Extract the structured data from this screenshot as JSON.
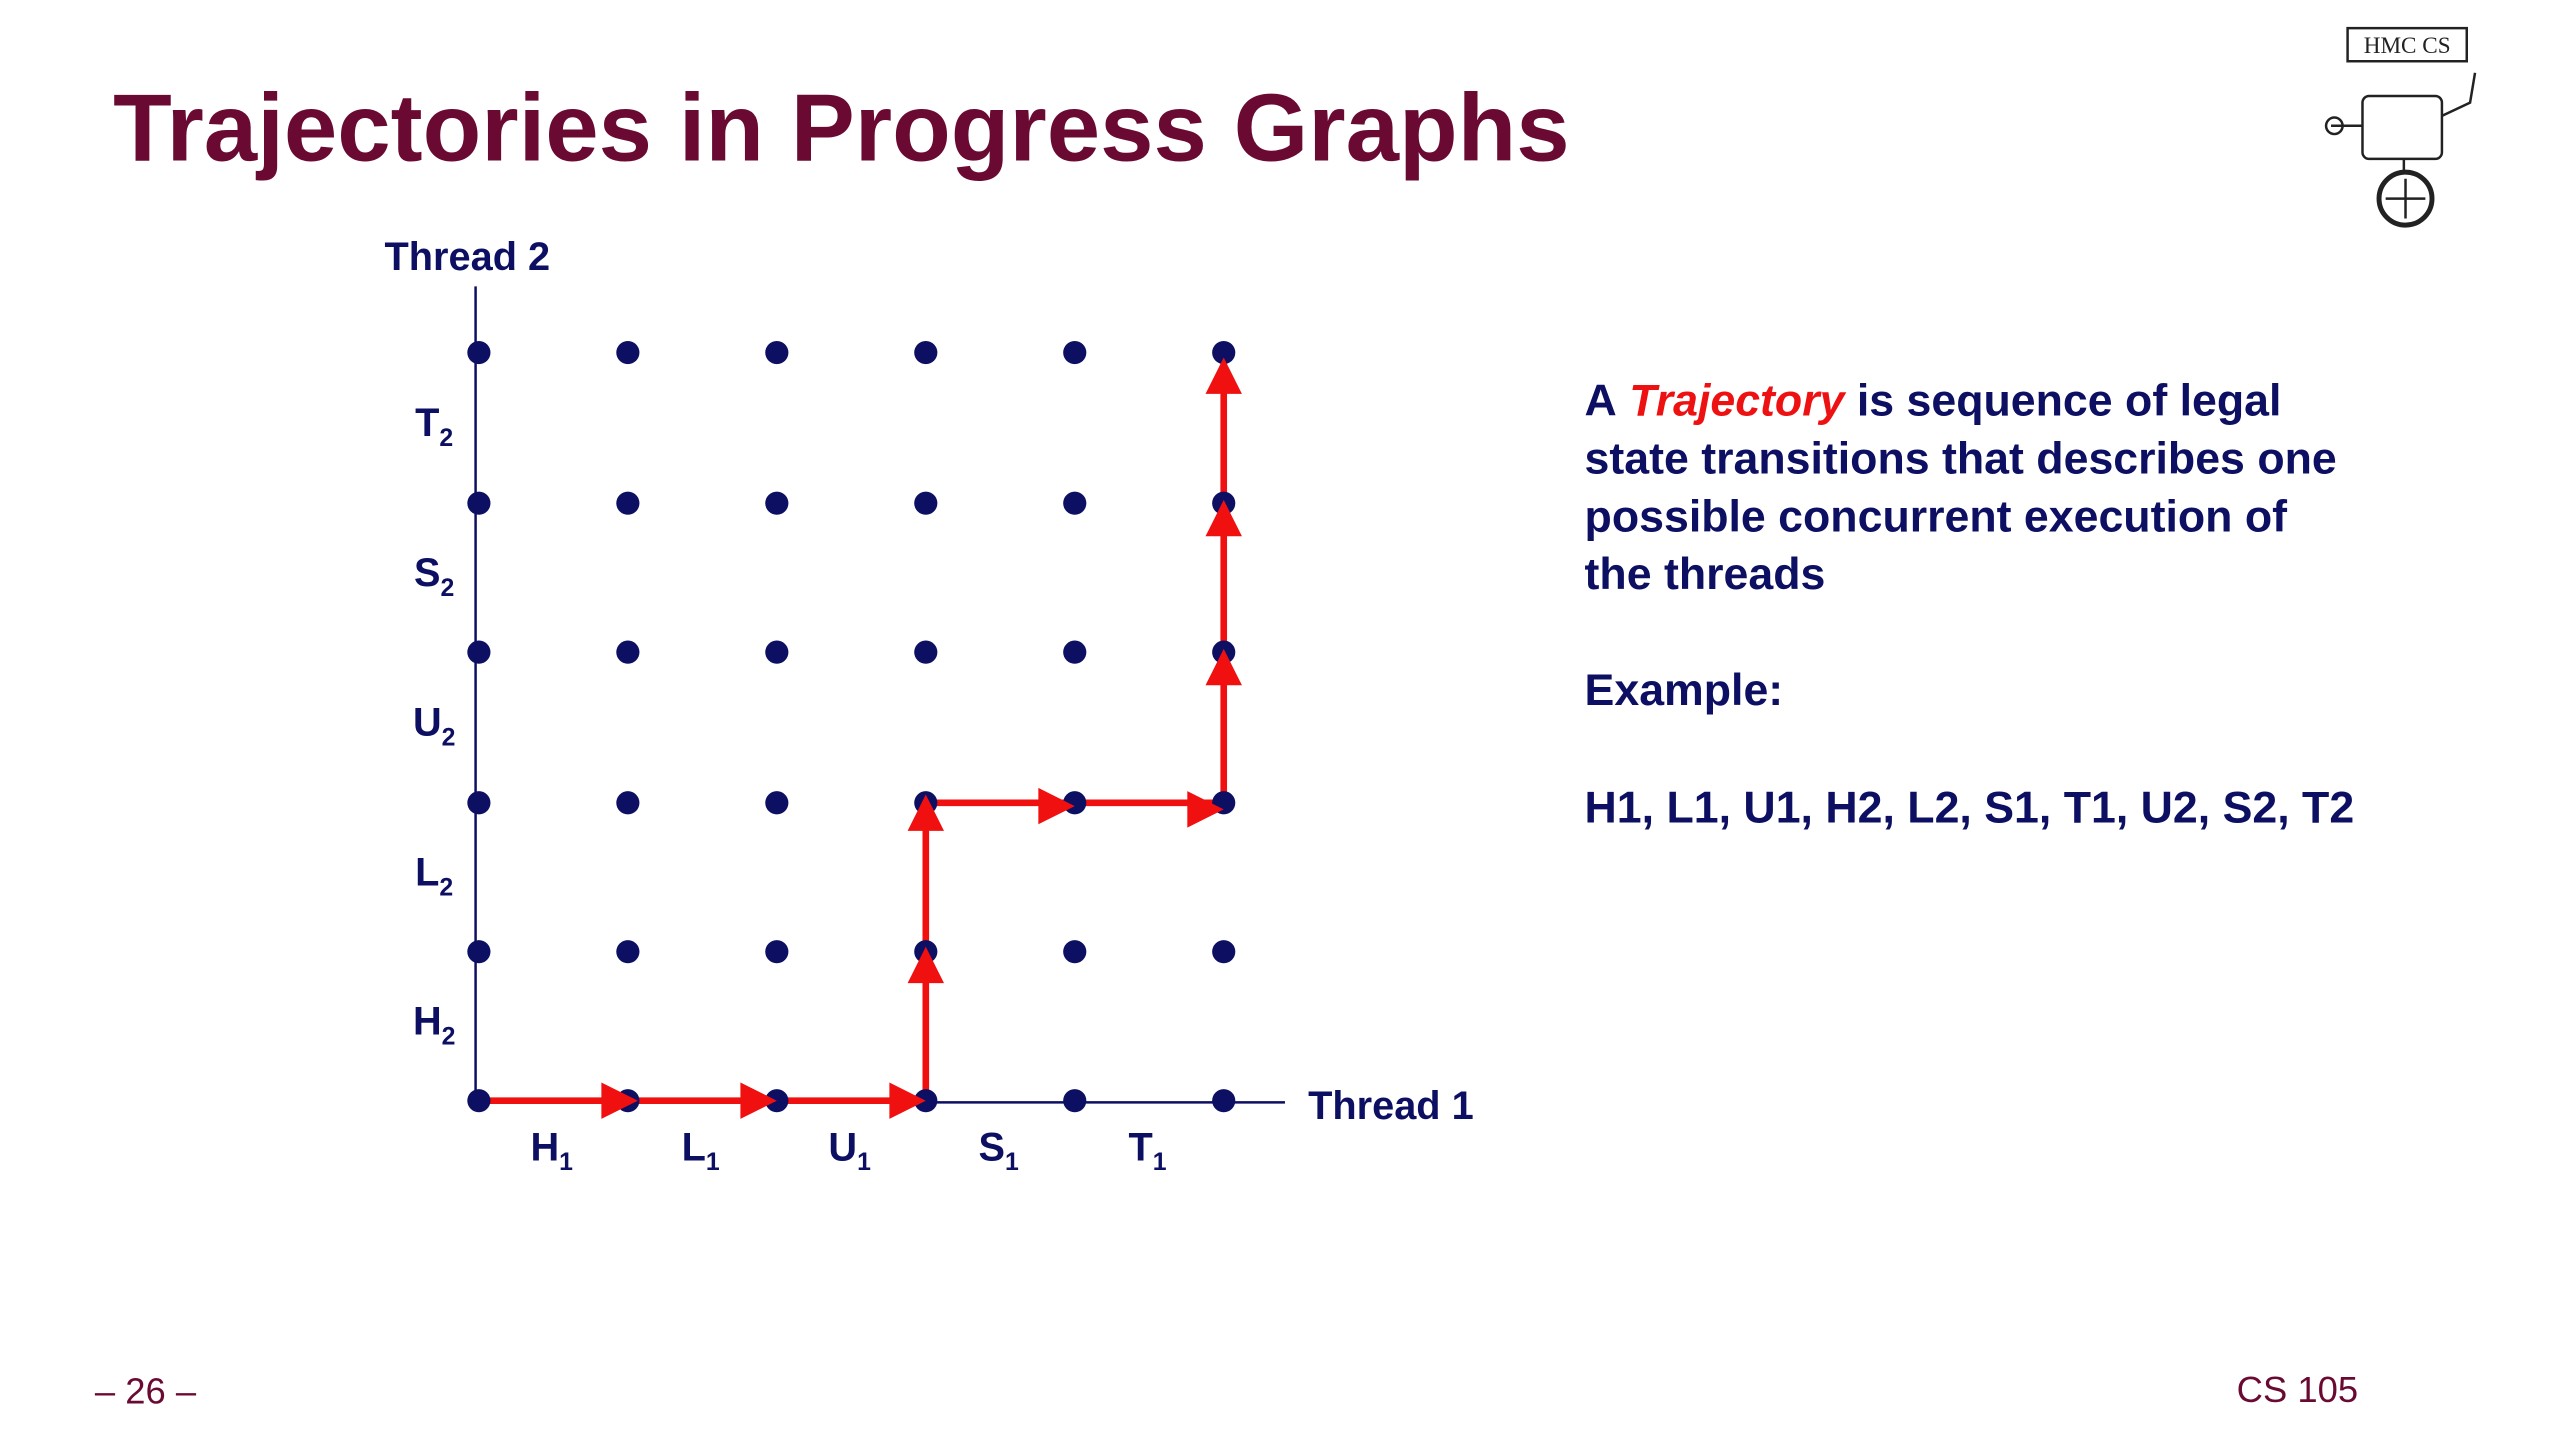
{
  "header": {
    "title": "Trajectories in Progress Graphs",
    "logo_text": "HMC CS"
  },
  "graph": {
    "y_axis_label": "Thread 2",
    "x_axis_label": "Thread 1",
    "x_ticks": [
      {
        "main": "H",
        "sub": "1"
      },
      {
        "main": "L",
        "sub": "1"
      },
      {
        "main": "U",
        "sub": "1"
      },
      {
        "main": "S",
        "sub": "1"
      },
      {
        "main": "T",
        "sub": "1"
      }
    ],
    "y_ticks": [
      {
        "main": "H",
        "sub": "2"
      },
      {
        "main": "L",
        "sub": "2"
      },
      {
        "main": "U",
        "sub": "2"
      },
      {
        "main": "S",
        "sub": "2"
      },
      {
        "main": "T",
        "sub": "2"
      }
    ]
  },
  "text": {
    "line1": {
      "lead": "A",
      "term": "Trajectory",
      "rest": "is sequence of legal"
    },
    "line2": "state transitions that describes one",
    "line3": "possible concurrent execution of",
    "line4": "the threads",
    "example_label": "Example:",
    "example": "H1, L1, U1, H2, L2, S1, T1, U2, S2, T2"
  },
  "footer": {
    "page": "– 26 –",
    "course": "CS 105"
  }
}
